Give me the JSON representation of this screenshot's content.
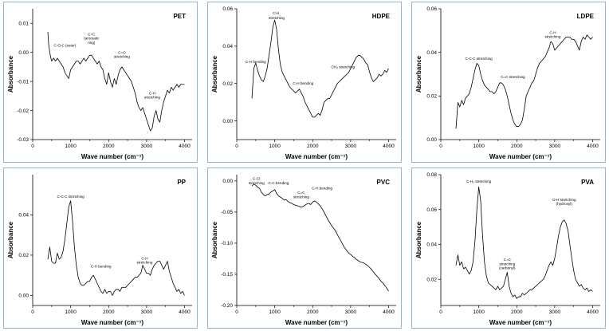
{
  "chart_data": [
    {
      "id": "pet",
      "type": "line",
      "title": "PET",
      "xlabel": "Wave number  (cm⁻¹)",
      "ylabel": "Absorbance",
      "xlim": [
        0,
        4200
      ],
      "ylim": [
        -0.03,
        0.015
      ],
      "xticks": [
        0,
        1000,
        2000,
        3000,
        4000
      ],
      "xtick_labels": [
        "0",
        "1000",
        "2000",
        "3000",
        "4000"
      ],
      "yticks": [
        -0.03,
        -0.02,
        -0.01,
        0.0,
        0.01
      ],
      "ytick_labels": [
        "-0.03",
        "-0.02",
        "-0.01",
        "0.00",
        "0.01"
      ],
      "annotations": [
        {
          "lines": [
            "C-O-C (ester)"
          ],
          "x": 850,
          "y": 0.002
        },
        {
          "lines": [
            "C=C",
            "(aromatic",
            "ring)"
          ],
          "x": 1550,
          "y": 0.0058
        },
        {
          "lines": [
            "C=O",
            "stretching"
          ],
          "x": 2350,
          "y": -0.0005
        },
        {
          "lines": [
            "C-H",
            "stretching"
          ],
          "x": 3150,
          "y": -0.0145
        }
      ],
      "x": [
        400,
        420,
        450,
        480,
        500,
        550,
        600,
        650,
        700,
        750,
        800,
        850,
        900,
        950,
        1000,
        1050,
        1100,
        1150,
        1200,
        1250,
        1300,
        1350,
        1400,
        1450,
        1500,
        1550,
        1600,
        1650,
        1700,
        1750,
        1800,
        1850,
        1900,
        1950,
        2000,
        2050,
        2100,
        2150,
        2200,
        2250,
        2300,
        2350,
        2400,
        2450,
        2500,
        2550,
        2600,
        2650,
        2700,
        2750,
        2800,
        2850,
        2900,
        2950,
        3000,
        3050,
        3100,
        3150,
        3200,
        3250,
        3300,
        3350,
        3400,
        3450,
        3500,
        3550,
        3600,
        3650,
        3700,
        3750,
        3800,
        3850,
        3900,
        3950,
        4000
      ],
      "values": [
        0.007,
        0.003,
        0.0,
        -0.002,
        -0.003,
        -0.002,
        -0.003,
        -0.002,
        -0.003,
        -0.004,
        -0.005,
        -0.007,
        -0.008,
        -0.009,
        -0.006,
        -0.005,
        -0.004,
        -0.003,
        -0.003,
        -0.004,
        -0.003,
        -0.002,
        -0.003,
        -0.002,
        -0.001,
        -0.001,
        -0.002,
        -0.003,
        -0.004,
        -0.003,
        -0.005,
        -0.006,
        -0.009,
        -0.011,
        -0.007,
        -0.01,
        -0.012,
        -0.009,
        -0.011,
        -0.008,
        -0.006,
        -0.005,
        -0.006,
        -0.007,
        -0.008,
        -0.009,
        -0.01,
        -0.012,
        -0.014,
        -0.017,
        -0.019,
        -0.02,
        -0.019,
        -0.021,
        -0.023,
        -0.025,
        -0.027,
        -0.026,
        -0.022,
        -0.02,
        -0.023,
        -0.024,
        -0.02,
        -0.017,
        -0.015,
        -0.013,
        -0.014,
        -0.012,
        -0.013,
        -0.012,
        -0.011,
        -0.012,
        -0.011,
        -0.011,
        -0.011
      ]
    },
    {
      "id": "hdpe",
      "type": "line",
      "title": "HDPE",
      "xlabel": "Wave number  (cm⁻¹)",
      "ylabel": "Absorbance",
      "xlim": [
        0,
        4200
      ],
      "ylim": [
        -0.01,
        0.06
      ],
      "xticks": [
        0,
        1000,
        2000,
        3000,
        4000
      ],
      "xtick_labels": [
        "0",
        "1000",
        "2000",
        "3000",
        "4000"
      ],
      "yticks": [
        0.0,
        0.02,
        0.04,
        0.06
      ],
      "ytick_labels": [
        "0.00",
        "0.02",
        "0.04",
        "0.06"
      ],
      "annotations": [
        {
          "lines": [
            "C-H",
            "₂",
            "stretching"
          ],
          "x": 1050,
          "y": 0.057,
          "special": "ch2"
        },
        {
          "lines": [
            "C-H bending"
          ],
          "x": 500,
          "y": 0.031
        },
        {
          "lines": [
            "C-H bending"
          ],
          "x": 1750,
          "y": 0.0195
        },
        {
          "lines": [
            "CH₂ stretching"
          ],
          "x": 2800,
          "y": 0.0282
        }
      ],
      "x": [
        400,
        450,
        500,
        550,
        600,
        650,
        700,
        750,
        800,
        850,
        900,
        950,
        1000,
        1050,
        1100,
        1150,
        1200,
        1250,
        1300,
        1350,
        1400,
        1450,
        1500,
        1550,
        1600,
        1650,
        1700,
        1750,
        1800,
        1850,
        1900,
        1950,
        2000,
        2050,
        2100,
        2150,
        2200,
        2250,
        2300,
        2350,
        2400,
        2450,
        2500,
        2550,
        2600,
        2650,
        2700,
        2750,
        2800,
        2850,
        2900,
        2950,
        3000,
        3050,
        3100,
        3150,
        3200,
        3250,
        3300,
        3350,
        3400,
        3450,
        3500,
        3550,
        3600,
        3650,
        3700,
        3750,
        3800,
        3850,
        3900,
        3950,
        4000
      ],
      "values": [
        0.012,
        0.028,
        0.031,
        0.027,
        0.024,
        0.022,
        0.021,
        0.024,
        0.028,
        0.035,
        0.042,
        0.05,
        0.054,
        0.049,
        0.038,
        0.03,
        0.026,
        0.024,
        0.022,
        0.02,
        0.018,
        0.017,
        0.016,
        0.015,
        0.016,
        0.017,
        0.015,
        0.013,
        0.01,
        0.008,
        0.006,
        0.004,
        0.002,
        0.002,
        0.003,
        0.004,
        0.003,
        0.006,
        0.01,
        0.011,
        0.012,
        0.012,
        0.014,
        0.016,
        0.018,
        0.02,
        0.021,
        0.022,
        0.023,
        0.024,
        0.025,
        0.026,
        0.028,
        0.03,
        0.032,
        0.034,
        0.035,
        0.035,
        0.034,
        0.033,
        0.031,
        0.03,
        0.026,
        0.023,
        0.021,
        0.022,
        0.023,
        0.025,
        0.024,
        0.025,
        0.027,
        0.026,
        0.028
      ]
    },
    {
      "id": "ldpe",
      "type": "line",
      "title": "LDPE",
      "xlabel": "Wave number  (cm⁻¹)",
      "ylabel": "Absorbance",
      "xlim": [
        0,
        4200
      ],
      "ylim": [
        0.0,
        0.06
      ],
      "xticks": [
        0,
        1000,
        2000,
        3000,
        4000
      ],
      "xtick_labels": [
        "0",
        "1000",
        "2000",
        "3000",
        "4000"
      ],
      "yticks": [
        0.0,
        0.02,
        0.04,
        0.06
      ],
      "ytick_labels": [
        "0.00",
        "0.02",
        "0.04",
        "0.06"
      ],
      "annotations": [
        {
          "lines": [
            "C-C-C stretching"
          ],
          "x": 1000,
          "y": 0.0365
        },
        {
          "lines": [
            "C=C stretching"
          ],
          "x": 1900,
          "y": 0.0282
        },
        {
          "lines": [
            "C-H",
            "stretching"
          ],
          "x": 2950,
          "y": 0.0485
        }
      ],
      "x": [
        400,
        450,
        500,
        550,
        600,
        650,
        700,
        750,
        800,
        850,
        900,
        950,
        1000,
        1050,
        1100,
        1150,
        1200,
        1250,
        1300,
        1350,
        1400,
        1450,
        1500,
        1550,
        1600,
        1650,
        1700,
        1750,
        1800,
        1850,
        1900,
        1950,
        2000,
        2050,
        2100,
        2150,
        2200,
        2250,
        2300,
        2350,
        2400,
        2450,
        2500,
        2550,
        2600,
        2650,
        2700,
        2750,
        2800,
        2850,
        2900,
        2950,
        3000,
        3050,
        3100,
        3150,
        3200,
        3250,
        3300,
        3350,
        3400,
        3450,
        3500,
        3550,
        3600,
        3650,
        3700,
        3750,
        3800,
        3850,
        3900,
        3950,
        4000
      ],
      "values": [
        0.005,
        0.017,
        0.015,
        0.018,
        0.016,
        0.019,
        0.02,
        0.021,
        0.024,
        0.028,
        0.032,
        0.035,
        0.034,
        0.03,
        0.027,
        0.025,
        0.024,
        0.023,
        0.022,
        0.022,
        0.021,
        0.022,
        0.024,
        0.026,
        0.026,
        0.025,
        0.023,
        0.02,
        0.016,
        0.012,
        0.009,
        0.007,
        0.006,
        0.006,
        0.007,
        0.009,
        0.014,
        0.02,
        0.022,
        0.024,
        0.026,
        0.027,
        0.03,
        0.033,
        0.035,
        0.036,
        0.037,
        0.038,
        0.04,
        0.042,
        0.045,
        0.044,
        0.041,
        0.042,
        0.043,
        0.044,
        0.045,
        0.046,
        0.047,
        0.047,
        0.047,
        0.046,
        0.046,
        0.045,
        0.043,
        0.041,
        0.045,
        0.047,
        0.046,
        0.048,
        0.047,
        0.046,
        0.047
      ]
    },
    {
      "id": "pp",
      "type": "line",
      "title": "PP",
      "xlabel": "Wave number  (cm⁻¹)",
      "ylabel": "Absorbance",
      "xlim": [
        0,
        4200
      ],
      "ylim": [
        -0.005,
        0.06
      ],
      "xticks": [
        0,
        1000,
        2000,
        3000,
        4000
      ],
      "xtick_labels": [
        "0",
        "1000",
        "2000",
        "3000",
        "4000"
      ],
      "yticks": [
        0.0,
        0.02,
        0.04
      ],
      "ytick_labels": [
        "0.00",
        "0.02",
        "0.04"
      ],
      "annotations": [
        {
          "lines": [
            "C-C-C stretching"
          ],
          "x": 1000,
          "y": 0.0485
        },
        {
          "lines": [
            "C-H bending"
          ],
          "x": 1800,
          "y": 0.0138
        },
        {
          "lines": [
            "C-H",
            "stretching"
          ],
          "x": 2950,
          "y": 0.0178
        }
      ],
      "x": [
        400,
        450,
        500,
        550,
        600,
        650,
        700,
        750,
        800,
        850,
        900,
        950,
        1000,
        1050,
        1100,
        1150,
        1200,
        1250,
        1300,
        1350,
        1400,
        1450,
        1500,
        1550,
        1600,
        1650,
        1700,
        1750,
        1800,
        1850,
        1900,
        1950,
        2000,
        2050,
        2100,
        2150,
        2200,
        2250,
        2300,
        2350,
        2400,
        2450,
        2500,
        2550,
        2600,
        2650,
        2700,
        2750,
        2800,
        2850,
        2900,
        2950,
        3000,
        3050,
        3100,
        3150,
        3200,
        3250,
        3300,
        3350,
        3400,
        3450,
        3500,
        3550,
        3600,
        3650,
        3700,
        3750,
        3800,
        3850,
        3900,
        3950,
        4000
      ],
      "values": [
        0.018,
        0.024,
        0.017,
        0.016,
        0.016,
        0.021,
        0.018,
        0.019,
        0.022,
        0.028,
        0.036,
        0.044,
        0.047,
        0.037,
        0.024,
        0.015,
        0.009,
        0.006,
        0.005,
        0.005,
        0.006,
        0.007,
        0.007,
        0.009,
        0.01,
        0.008,
        0.006,
        0.004,
        0.002,
        0.001,
        0.003,
        0.001,
        0.002,
        0.002,
        0.0,
        0.002,
        0.003,
        0.003,
        0.002,
        0.004,
        0.004,
        0.004,
        0.005,
        0.006,
        0.007,
        0.008,
        0.009,
        0.009,
        0.01,
        0.011,
        0.015,
        0.013,
        0.011,
        0.011,
        0.01,
        0.013,
        0.015,
        0.016,
        0.017,
        0.017,
        0.015,
        0.013,
        0.015,
        0.017,
        0.012,
        0.009,
        0.006,
        0.004,
        0.002,
        0.003,
        0.001,
        0.002,
        0.0
      ]
    },
    {
      "id": "pvc",
      "type": "line",
      "title": "PVC",
      "xlabel": "Wave number  (cm⁻¹)",
      "ylabel": "Absorbance",
      "xlim": [
        0,
        4200
      ],
      "ylim": [
        -0.2,
        0.01
      ],
      "xticks": [
        0,
        1000,
        2000,
        3000,
        4000
      ],
      "xtick_labels": [
        "0",
        "1000",
        "2000",
        "3000",
        "4000"
      ],
      "yticks": [
        -0.2,
        -0.15,
        -0.1,
        -0.05,
        0.0
      ],
      "ytick_labels": [
        "-0.20",
        "-0.15",
        "-0.10",
        "-0.05",
        "0.00"
      ],
      "annotations": [
        {
          "lines": [
            "C-Cl",
            "stretching"
          ],
          "x": 520,
          "y": 0.0015
        },
        {
          "lines": [
            "C-C bending"
          ],
          "x": 1100,
          "y": -0.0055
        },
        {
          "lines": [
            "C=C",
            "stretching"
          ],
          "x": 1700,
          "y": -0.021
        },
        {
          "lines": [
            "C-H bending"
          ],
          "x": 2250,
          "y": -0.0135
        }
      ],
      "x": [
        400,
        450,
        500,
        550,
        600,
        650,
        700,
        750,
        800,
        850,
        900,
        950,
        1000,
        1050,
        1100,
        1150,
        1200,
        1250,
        1300,
        1350,
        1400,
        1450,
        1500,
        1550,
        1600,
        1650,
        1700,
        1750,
        1800,
        1850,
        1900,
        1950,
        2000,
        2050,
        2100,
        2150,
        2200,
        2250,
        2300,
        2350,
        2400,
        2450,
        2500,
        2550,
        2600,
        2650,
        2700,
        2750,
        2800,
        2850,
        2900,
        2950,
        3000,
        3050,
        3100,
        3150,
        3200,
        3250,
        3300,
        3350,
        3400,
        3450,
        3500,
        3550,
        3600,
        3650,
        3700,
        3750,
        3800,
        3850,
        3900,
        3950,
        4000
      ],
      "values": [
        -0.008,
        -0.005,
        -0.007,
        -0.01,
        -0.012,
        -0.018,
        -0.022,
        -0.024,
        -0.022,
        -0.021,
        -0.018,
        -0.016,
        -0.014,
        -0.02,
        -0.024,
        -0.026,
        -0.028,
        -0.031,
        -0.03,
        -0.033,
        -0.035,
        -0.036,
        -0.038,
        -0.039,
        -0.04,
        -0.041,
        -0.042,
        -0.041,
        -0.039,
        -0.037,
        -0.036,
        -0.038,
        -0.034,
        -0.032,
        -0.034,
        -0.037,
        -0.04,
        -0.045,
        -0.05,
        -0.056,
        -0.062,
        -0.067,
        -0.072,
        -0.076,
        -0.08,
        -0.086,
        -0.092,
        -0.097,
        -0.103,
        -0.108,
        -0.112,
        -0.116,
        -0.118,
        -0.121,
        -0.123,
        -0.126,
        -0.128,
        -0.13,
        -0.131,
        -0.132,
        -0.134,
        -0.136,
        -0.139,
        -0.142,
        -0.146,
        -0.15,
        -0.153,
        -0.157,
        -0.161,
        -0.164,
        -0.168,
        -0.172,
        -0.177
      ]
    },
    {
      "id": "pva",
      "type": "line",
      "title": "PVA",
      "xlabel": "Wave number  (cm⁻¹)",
      "ylabel": "Absorbance",
      "xlim": [
        0,
        4200
      ],
      "ylim": [
        0.005,
        0.08
      ],
      "xticks": [
        0,
        1000,
        2000,
        3000,
        4000
      ],
      "xtick_labels": [
        "0",
        "1000",
        "2000",
        "3000",
        "4000"
      ],
      "yticks": [
        0.02,
        0.04,
        0.06,
        0.08
      ],
      "ytick_labels": [
        "0.02",
        "0.04",
        "0.06",
        "0.08"
      ],
      "annotations": [
        {
          "lines": [
            "C-H₂ stretching"
          ],
          "x": 1000,
          "y": 0.0755
        },
        {
          "lines": [
            "C=C",
            "stretching",
            "(carbonyl)"
          ],
          "x": 1750,
          "y": 0.0305
        },
        {
          "lines": [
            "O-H stretching",
            "(hydroxyl)"
          ],
          "x": 3250,
          "y": 0.065
        }
      ],
      "x": [
        400,
        450,
        500,
        550,
        600,
        650,
        700,
        750,
        800,
        850,
        900,
        950,
        1000,
        1050,
        1100,
        1150,
        1200,
        1250,
        1300,
        1350,
        1400,
        1450,
        1500,
        1550,
        1600,
        1650,
        1700,
        1750,
        1800,
        1850,
        1900,
        1950,
        2000,
        2050,
        2100,
        2150,
        2200,
        2250,
        2300,
        2350,
        2400,
        2450,
        2500,
        2550,
        2600,
        2650,
        2700,
        2750,
        2800,
        2850,
        2900,
        2950,
        3000,
        3050,
        3100,
        3150,
        3200,
        3250,
        3300,
        3350,
        3400,
        3450,
        3500,
        3550,
        3600,
        3650,
        3700,
        3750,
        3800,
        3850,
        3900,
        3950,
        4000
      ],
      "values": [
        0.028,
        0.034,
        0.028,
        0.03,
        0.026,
        0.027,
        0.025,
        0.023,
        0.025,
        0.03,
        0.042,
        0.06,
        0.073,
        0.065,
        0.045,
        0.03,
        0.022,
        0.018,
        0.017,
        0.016,
        0.015,
        0.014,
        0.016,
        0.014,
        0.015,
        0.016,
        0.02,
        0.024,
        0.016,
        0.012,
        0.01,
        0.011,
        0.009,
        0.01,
        0.01,
        0.012,
        0.011,
        0.012,
        0.013,
        0.014,
        0.014,
        0.015,
        0.016,
        0.017,
        0.018,
        0.019,
        0.02,
        0.022,
        0.025,
        0.028,
        0.03,
        0.028,
        0.032,
        0.038,
        0.045,
        0.05,
        0.053,
        0.054,
        0.052,
        0.048,
        0.04,
        0.032,
        0.025,
        0.02,
        0.018,
        0.016,
        0.017,
        0.015,
        0.014,
        0.015,
        0.013,
        0.014,
        0.013
      ]
    }
  ]
}
